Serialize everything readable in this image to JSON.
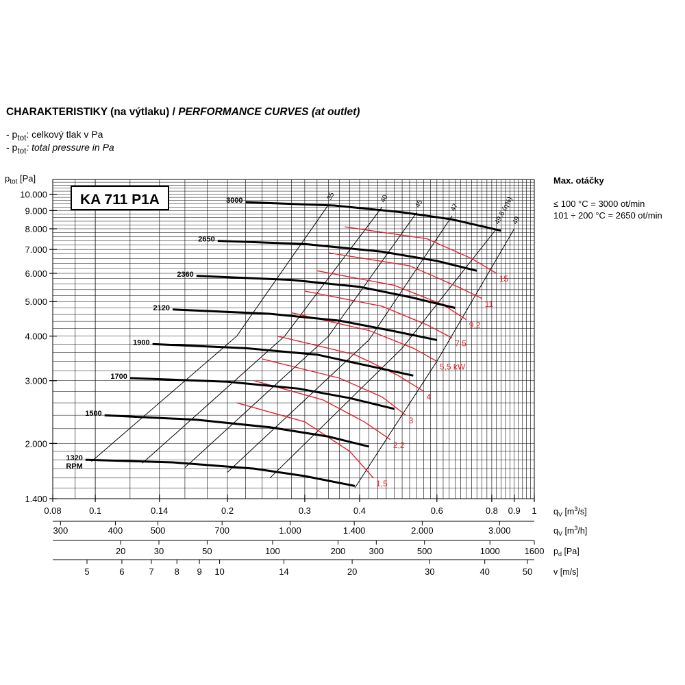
{
  "header": {
    "title_cz": "CHARAKTERISTIKY (na výtlaku) / ",
    "title_en": "PERFORMANCE CURVES (at outlet)",
    "legend_prefix": "- p",
    "legend_sub": "tot",
    "legend_cz": ": celkový tlak v Pa",
    "legend_en": ": total pressure in Pa"
  },
  "side_notes": {
    "max_rpm_label": "Max. otáčky",
    "note1": "≤ 100 °C = 3000 ot/min",
    "note2": "101 ÷ 200 °C = 2650 ot/min"
  },
  "chart_data": {
    "type": "line",
    "model_label": "KA 711 P1A",
    "y_axis": {
      "label_main": "p",
      "label_sub": "tot",
      "label_unit": " [Pa]",
      "scale": "log",
      "range": [
        1400,
        11000
      ],
      "ticks": [
        {
          "value": 10000,
          "label": "10.000"
        },
        {
          "value": 9000,
          "label": "9.000"
        },
        {
          "value": 8000,
          "label": "8.000"
        },
        {
          "value": 7000,
          "label": "7.000"
        },
        {
          "value": 6000,
          "label": "6.000"
        },
        {
          "value": 5000,
          "label": "5.000"
        },
        {
          "value": 4000,
          "label": "4.000"
        },
        {
          "value": 3000,
          "label": "3.000"
        },
        {
          "value": 2000,
          "label": "2.000"
        },
        {
          "value": 1400,
          "label": "1.400"
        }
      ]
    },
    "x_axis": {
      "unit_main": "q",
      "unit_sub": "V",
      "unit_tail": " [m",
      "unit_sup": "3",
      "unit_end": "/s]",
      "scale": "log",
      "range": [
        0.08,
        1
      ],
      "ticks": [
        {
          "value": 0.08,
          "label": "0.08"
        },
        {
          "value": 0.1,
          "label": "0.1"
        },
        {
          "value": 0.14,
          "label": "0.14"
        },
        {
          "value": 0.2,
          "label": "0.2"
        },
        {
          "value": 0.3,
          "label": "0.3"
        },
        {
          "value": 0.4,
          "label": "0.4"
        },
        {
          "value": 0.6,
          "label": "0.6"
        },
        {
          "value": 0.8,
          "label": "0.8"
        },
        {
          "value": 0.9,
          "label": "0.9"
        },
        {
          "value": 1,
          "label": "1"
        }
      ]
    },
    "secondary_axes": [
      {
        "unit_main": "q",
        "unit_sub": "V",
        "unit_tail": " [m",
        "unit_sup": "3",
        "unit_end": "/h]",
        "ticks": [
          {
            "value": 300,
            "label": "300"
          },
          {
            "value": 400,
            "label": "400"
          },
          {
            "value": 500,
            "label": "500"
          },
          {
            "value": 700,
            "label": "700"
          },
          {
            "value": 1000,
            "label": "1.000"
          },
          {
            "value": 1400,
            "label": "1.400"
          },
          {
            "value": 2000,
            "label": "2.000"
          },
          {
            "value": 3000,
            "label": "3.000"
          }
        ]
      },
      {
        "unit_main": "p",
        "unit_sub": "d",
        "unit_tail": " [Pa]",
        "unit_sup": "",
        "unit_end": "",
        "ticks": [
          {
            "value": 20,
            "label": "20"
          },
          {
            "value": 30,
            "label": "30"
          },
          {
            "value": 50,
            "label": "50"
          },
          {
            "value": 100,
            "label": "100"
          },
          {
            "value": 200,
            "label": "200"
          },
          {
            "value": 300,
            "label": "300"
          },
          {
            "value": 500,
            "label": "500"
          },
          {
            "value": 1000,
            "label": "1000"
          },
          {
            "value": 1600,
            "label": "1600"
          }
        ]
      },
      {
        "unit_main": "v",
        "unit_sub": "",
        "unit_tail": " [m/s]",
        "unit_sup": "",
        "unit_end": "",
        "ticks": [
          {
            "value": 5,
            "label": "5"
          },
          {
            "value": 6,
            "label": "6"
          },
          {
            "value": 7,
            "label": "7"
          },
          {
            "value": 8,
            "label": "8"
          },
          {
            "value": 9,
            "label": "9"
          },
          {
            "value": 10,
            "label": "10"
          },
          {
            "value": 14,
            "label": "14"
          },
          {
            "value": 20,
            "label": "20"
          },
          {
            "value": 30,
            "label": "30"
          },
          {
            "value": 40,
            "label": "40"
          },
          {
            "value": 50,
            "label": "50"
          }
        ]
      }
    ],
    "speed_curves": [
      {
        "name": "3000",
        "points": [
          [
            0.22,
            9500
          ],
          [
            0.35,
            9300
          ],
          [
            0.5,
            8900
          ],
          [
            0.65,
            8500
          ],
          [
            0.84,
            7900
          ]
        ]
      },
      {
        "name": "2650",
        "points": [
          [
            0.19,
            7400
          ],
          [
            0.3,
            7250
          ],
          [
            0.45,
            6900
          ],
          [
            0.6,
            6500
          ],
          [
            0.74,
            6100
          ]
        ]
      },
      {
        "name": "2360",
        "points": [
          [
            0.17,
            5900
          ],
          [
            0.28,
            5750
          ],
          [
            0.4,
            5500
          ],
          [
            0.52,
            5150
          ],
          [
            0.66,
            4800
          ]
        ]
      },
      {
        "name": "2120",
        "points": [
          [
            0.15,
            4750
          ],
          [
            0.25,
            4620
          ],
          [
            0.36,
            4420
          ],
          [
            0.47,
            4150
          ],
          [
            0.6,
            3900
          ]
        ]
      },
      {
        "name": "1900",
        "points": [
          [
            0.135,
            3800
          ],
          [
            0.22,
            3700
          ],
          [
            0.32,
            3550
          ],
          [
            0.42,
            3300
          ],
          [
            0.53,
            3100
          ]
        ]
      },
      {
        "name": "1700",
        "points": [
          [
            0.12,
            3050
          ],
          [
            0.2,
            2980
          ],
          [
            0.29,
            2850
          ],
          [
            0.38,
            2680
          ],
          [
            0.48,
            2500
          ]
        ]
      },
      {
        "name": "1500",
        "points": [
          [
            0.105,
            2400
          ],
          [
            0.17,
            2330
          ],
          [
            0.25,
            2220
          ],
          [
            0.34,
            2090
          ],
          [
            0.42,
            1960
          ]
        ]
      },
      {
        "name": "1320",
        "points": [
          [
            0.095,
            1800
          ],
          [
            0.15,
            1770
          ],
          [
            0.23,
            1700
          ],
          [
            0.3,
            1620
          ],
          [
            0.39,
            1520
          ]
        ]
      }
    ],
    "speed_label_unit": "RPM",
    "power_curves": [
      {
        "name": "1,5",
        "points": [
          [
            0.21,
            2600
          ],
          [
            0.3,
            2300
          ],
          [
            0.38,
            1900
          ],
          [
            0.43,
            1600
          ]
        ]
      },
      {
        "name": "2,2",
        "points": [
          [
            0.23,
            3000
          ],
          [
            0.33,
            2650
          ],
          [
            0.41,
            2300
          ],
          [
            0.47,
            2050
          ]
        ]
      },
      {
        "name": "3",
        "points": [
          [
            0.24,
            3450
          ],
          [
            0.36,
            3050
          ],
          [
            0.45,
            2700
          ],
          [
            0.51,
            2400
          ]
        ]
      },
      {
        "name": "4",
        "points": [
          [
            0.26,
            4000
          ],
          [
            0.39,
            3550
          ],
          [
            0.49,
            3100
          ],
          [
            0.56,
            2800
          ]
        ]
      },
      {
        "name": "5,5 kW",
        "points": [
          [
            0.28,
            4650
          ],
          [
            0.42,
            4150
          ],
          [
            0.53,
            3700
          ],
          [
            0.6,
            3400
          ]
        ]
      },
      {
        "name": "7,5",
        "points": [
          [
            0.3,
            5350
          ],
          [
            0.45,
            4850
          ],
          [
            0.57,
            4300
          ],
          [
            0.65,
            3950
          ]
        ]
      },
      {
        "name": "9,2",
        "points": [
          [
            0.32,
            6100
          ],
          [
            0.48,
            5550
          ],
          [
            0.62,
            4900
          ],
          [
            0.7,
            4450
          ]
        ]
      },
      {
        "name": "11",
        "points": [
          [
            0.34,
            6850
          ],
          [
            0.52,
            6300
          ],
          [
            0.67,
            5500
          ],
          [
            0.76,
            5100
          ]
        ]
      },
      {
        "name": "15",
        "points": [
          [
            0.37,
            8100
          ],
          [
            0.57,
            7500
          ],
          [
            0.72,
            6600
          ],
          [
            0.82,
            6000
          ]
        ]
      }
    ],
    "efficiency_lines": [
      {
        "name": "35",
        "points": [
          [
            0.098,
            1780
          ],
          [
            0.21,
            4000
          ],
          [
            0.34,
            9350
          ]
        ]
      },
      {
        "name": "40",
        "points": [
          [
            0.128,
            1760
          ],
          [
            0.27,
            4000
          ],
          [
            0.45,
            9200
          ]
        ]
      },
      {
        "name": "45",
        "points": [
          [
            0.16,
            1710
          ],
          [
            0.34,
            4000
          ],
          [
            0.54,
            8900
          ]
        ]
      },
      {
        "name": "47",
        "points": [
          [
            0.2,
            1660
          ],
          [
            0.42,
            3900
          ],
          [
            0.65,
            8700
          ]
        ]
      },
      {
        "name": "49,6 (η%)",
        "points": [
          [
            0.25,
            1600
          ],
          [
            0.5,
            3700
          ],
          [
            0.82,
            8000
          ]
        ]
      },
      {
        "name": "49",
        "points": [
          [
            0.39,
            1500
          ],
          [
            0.6,
            3400
          ],
          [
            0.9,
            8000
          ]
        ]
      }
    ]
  }
}
